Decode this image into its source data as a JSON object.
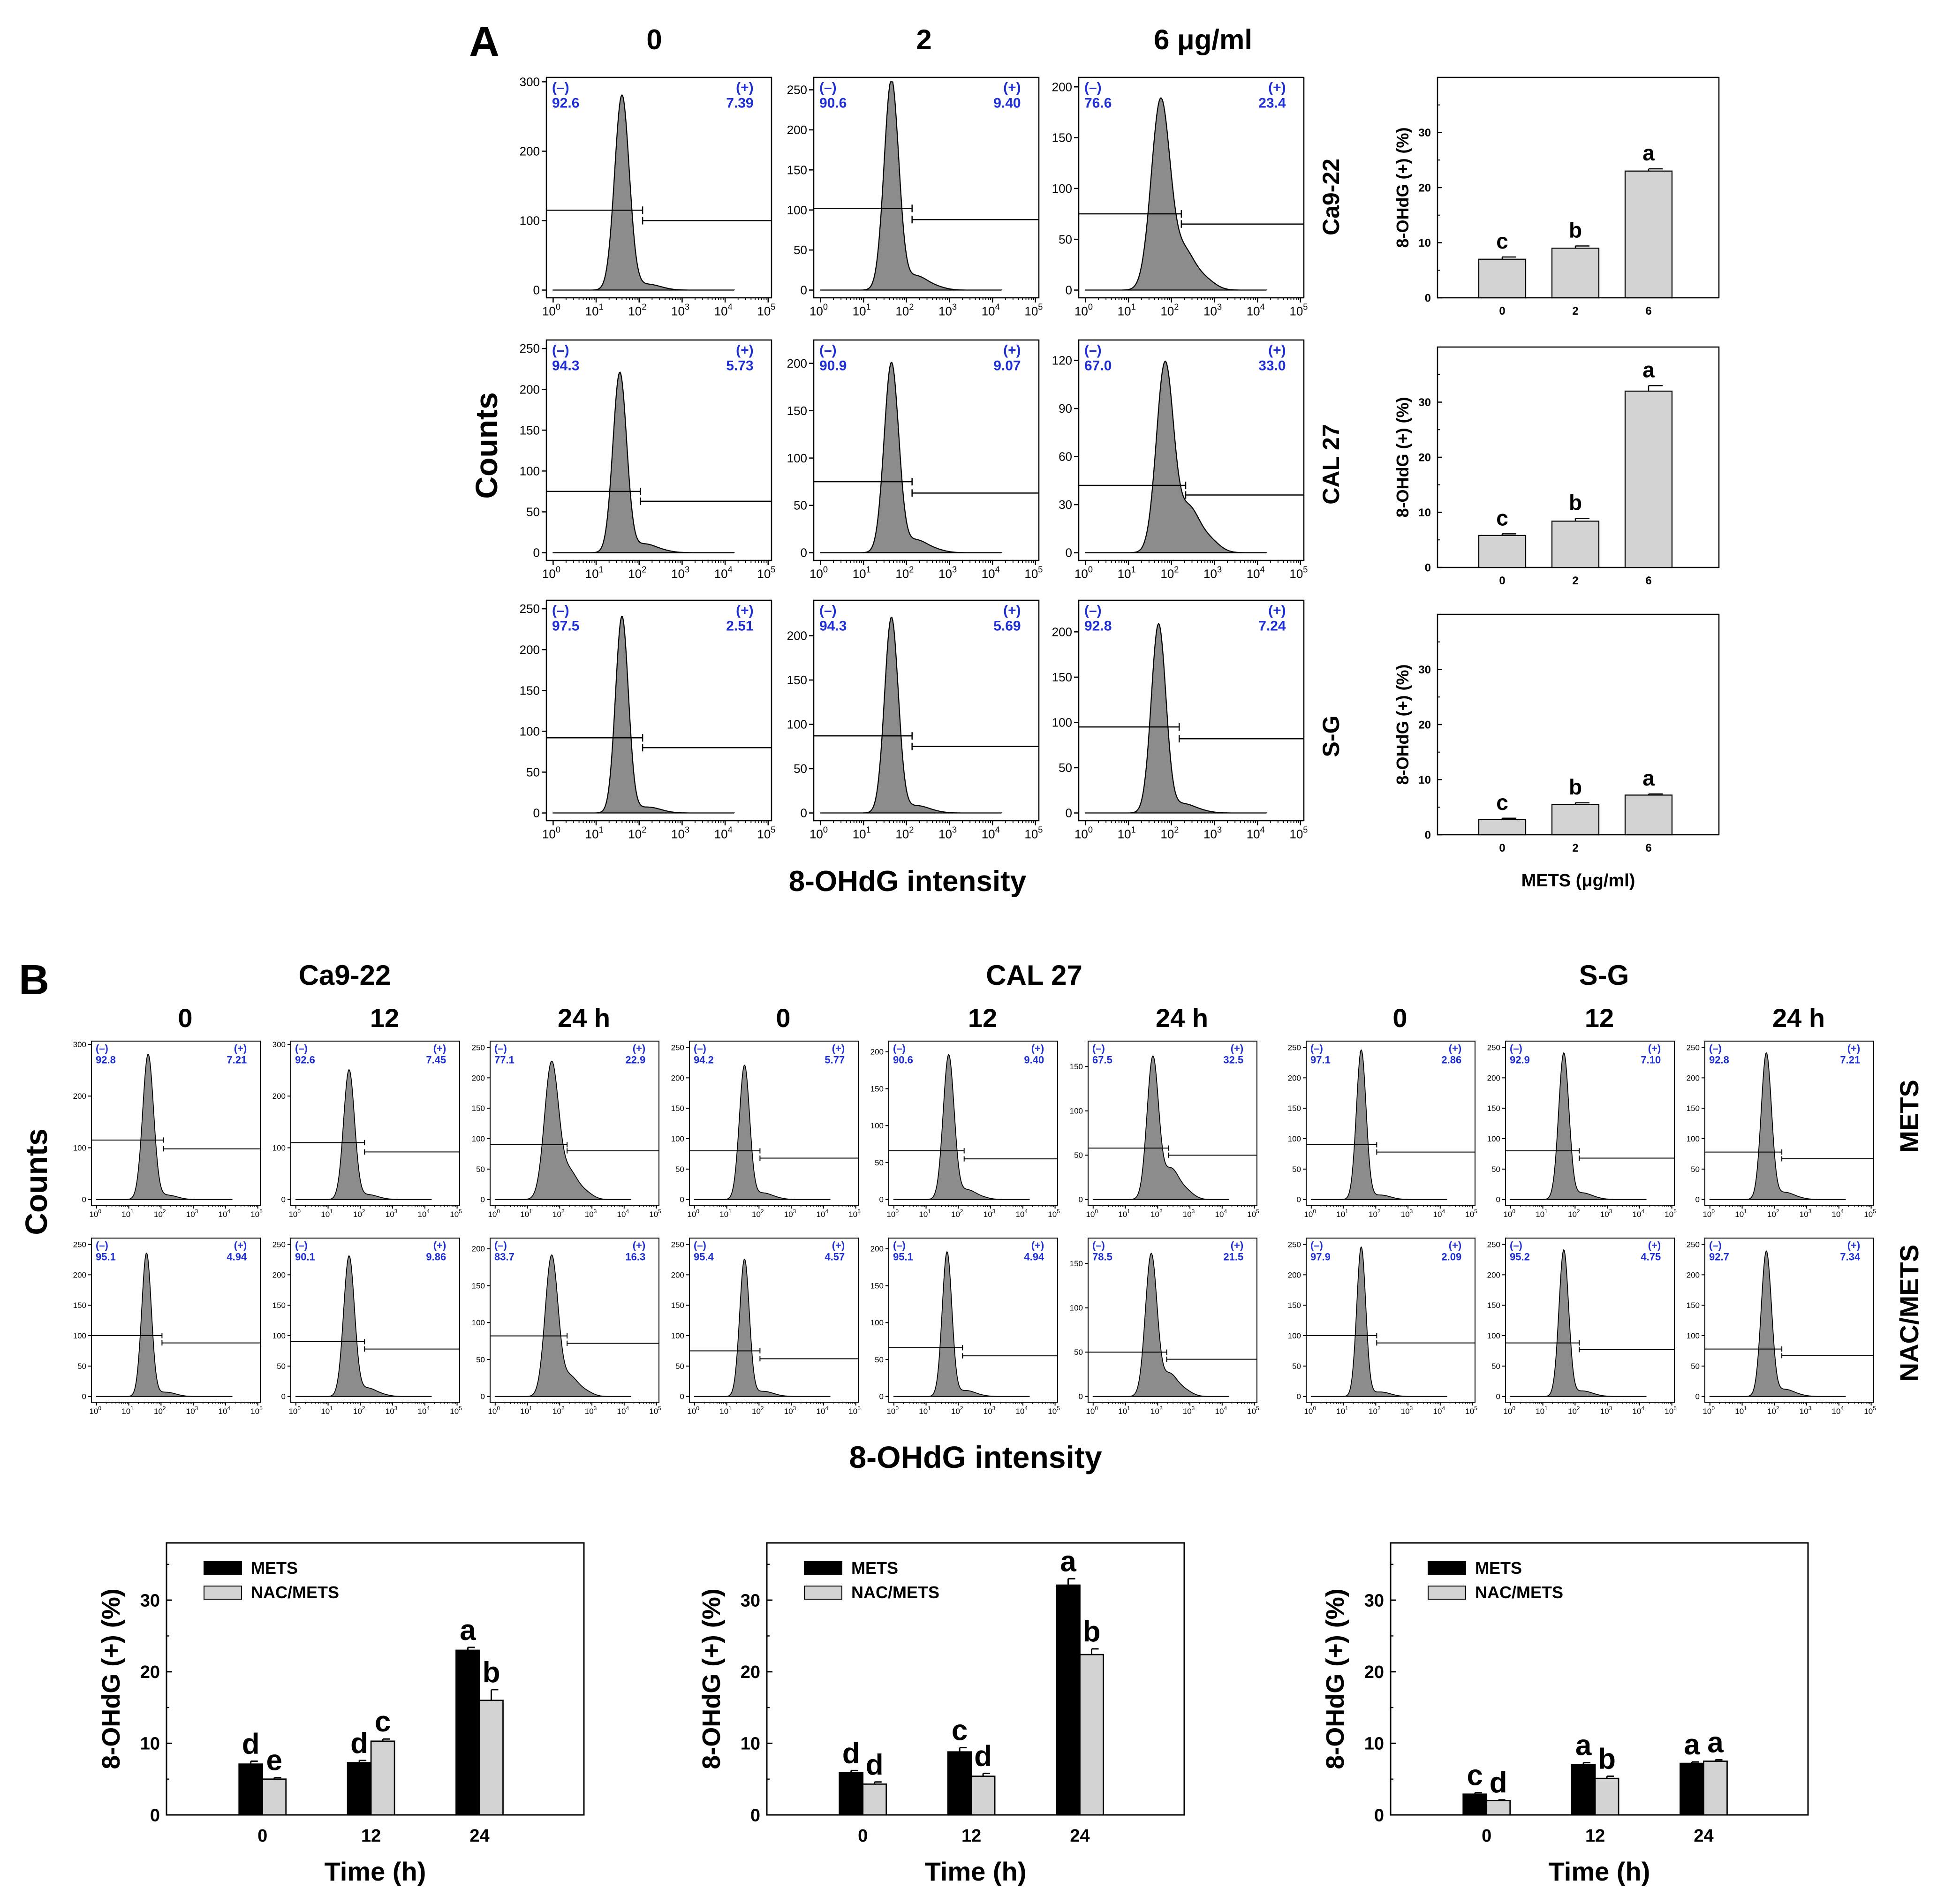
{
  "figure": {
    "panel_a_label": "A",
    "panel_b_label": "B",
    "colors": {
      "histogram_fill": "#8c8c8c",
      "stat_text": "#1f2fd6",
      "bar_light": "#d3d3d3",
      "bar_dark": "#000000"
    }
  },
  "panel_a": {
    "column_headers": [
      "0",
      "2",
      "6 μg/ml"
    ],
    "row_labels": [
      "Ca9-22",
      "CAL 27",
      "S-G"
    ],
    "y_axis_label": "Counts",
    "x_axis_label": "8-OHdG intensity",
    "log_ticks": [
      "10",
      "10",
      "10",
      "10",
      "10",
      "10"
    ],
    "log_exponents": [
      "0",
      "1",
      "2",
      "3",
      "4",
      "5"
    ],
    "histograms": [
      {
        "row": 0,
        "col": 0,
        "neg_label": "(–)",
        "pos_label": "(+)",
        "neg": "92.6",
        "pos": "7.39",
        "yticks": [
          "0",
          "100",
          "200",
          "300"
        ],
        "ymax": 300,
        "peak_log": 1.6,
        "peak": 280,
        "width": 0.17,
        "tail": 0.0,
        "gate_y": 115,
        "gate_y2": 100
      },
      {
        "row": 0,
        "col": 1,
        "neg_label": "(–)",
        "pos_label": "(+)",
        "neg": "90.6",
        "pos": "9.40",
        "yticks": [
          "0",
          "50",
          "100",
          "150",
          "200",
          "250"
        ],
        "ymax": 260,
        "peak_log": 1.65,
        "peak": 262,
        "width": 0.17,
        "tail": 0.1,
        "gate_y": 102,
        "gate_y2": 88
      },
      {
        "row": 0,
        "col": 2,
        "neg_label": "(–)",
        "pos_label": "(+)",
        "neg": "76.6",
        "pos": "23.4",
        "yticks": [
          "0",
          "50",
          "100",
          "150",
          "200"
        ],
        "ymax": 205,
        "peak_log": 1.75,
        "peak": 187,
        "width": 0.22,
        "tail": 0.45,
        "gate_y": 75,
        "gate_y2": 65
      },
      {
        "row": 1,
        "col": 0,
        "neg_label": "(–)",
        "pos_label": "(+)",
        "neg": "94.3",
        "pos": "5.73",
        "yticks": [
          "0",
          "50",
          "100",
          "150",
          "200",
          "250"
        ],
        "ymax": 255,
        "peak_log": 1.55,
        "peak": 220,
        "width": 0.16,
        "tail": 0.05,
        "gate_y": 75,
        "gate_y2": 63
      },
      {
        "row": 1,
        "col": 1,
        "neg_label": "(–)",
        "pos_label": "(+)",
        "neg": "90.9",
        "pos": "9.07",
        "yticks": [
          "0",
          "50",
          "100",
          "150",
          "200"
        ],
        "ymax": 220,
        "peak_log": 1.65,
        "peak": 200,
        "width": 0.17,
        "tail": 0.1,
        "gate_y": 75,
        "gate_y2": 63
      },
      {
        "row": 1,
        "col": 2,
        "neg_label": "(–)",
        "pos_label": "(+)",
        "neg": "67.0",
        "pos": "33.0",
        "yticks": [
          "0",
          "30",
          "60",
          "90",
          "120"
        ],
        "ymax": 130,
        "peak_log": 1.85,
        "peak": 118,
        "width": 0.2,
        "tail": 0.55,
        "gate_y": 42,
        "gate_y2": 36
      },
      {
        "row": 2,
        "col": 0,
        "neg_label": "(–)",
        "pos_label": "(+)",
        "neg": "97.5",
        "pos": "2.51",
        "yticks": [
          "0",
          "50",
          "100",
          "150",
          "200",
          "250"
        ],
        "ymax": 255,
        "peak_log": 1.6,
        "peak": 240,
        "width": 0.15,
        "tail": 0.0,
        "gate_y": 92,
        "gate_y2": 80
      },
      {
        "row": 2,
        "col": 1,
        "neg_label": "(–)",
        "pos_label": "(+)",
        "neg": "94.3",
        "pos": "5.69",
        "yticks": [
          "0",
          "50",
          "100",
          "150",
          "200"
        ],
        "ymax": 235,
        "peak_log": 1.65,
        "peak": 220,
        "width": 0.16,
        "tail": 0.02,
        "gate_y": 87,
        "gate_y2": 75
      },
      {
        "row": 2,
        "col": 2,
        "neg_label": "(–)",
        "pos_label": "(+)",
        "neg": "92.8",
        "pos": "7.24",
        "yticks": [
          "0",
          "50",
          "100",
          "150",
          "200"
        ],
        "ymax": 230,
        "peak_log": 1.7,
        "peak": 208,
        "width": 0.17,
        "tail": 0.05,
        "gate_y": 95,
        "gate_y2": 82
      }
    ]
  },
  "panel_b": {
    "group_titles": [
      "Ca9-22",
      "CAL 27",
      "S-G"
    ],
    "time_labels": [
      "0",
      "12",
      "24 h"
    ],
    "row_labels": [
      "METS",
      "NAC/METS"
    ],
    "y_axis_label": "Counts",
    "x_axis_label": "8-OHdG intensity",
    "histograms": [
      {
        "row": 0,
        "group": 0,
        "time": 0,
        "neg_label": "(–)",
        "pos_label": "(+)",
        "neg": "92.8",
        "pos": "7.21",
        "yticks": [
          "0",
          "100",
          "200",
          "300"
        ],
        "ymax": 300,
        "peak_log": 1.6,
        "peak": 280,
        "width": 0.17,
        "tail": 0.0,
        "gate_y": 115,
        "gate_y2": 98
      },
      {
        "row": 0,
        "group": 0,
        "time": 1,
        "neg_label": "(–)",
        "pos_label": "(+)",
        "neg": "92.6",
        "pos": "7.45",
        "yticks": [
          "0",
          "100",
          "200",
          "300"
        ],
        "ymax": 300,
        "peak_log": 1.65,
        "peak": 250,
        "width": 0.17,
        "tail": 0.02,
        "gate_y": 110,
        "gate_y2": 92
      },
      {
        "row": 0,
        "group": 0,
        "time": 2,
        "neg_label": "(–)",
        "pos_label": "(+)",
        "neg": "77.1",
        "pos": "22.9",
        "yticks": [
          "0",
          "50",
          "100",
          "150",
          "200",
          "250"
        ],
        "ymax": 255,
        "peak_log": 1.75,
        "peak": 225,
        "width": 0.22,
        "tail": 0.45,
        "gate_y": 90,
        "gate_y2": 80
      },
      {
        "row": 0,
        "group": 1,
        "time": 0,
        "neg_label": "(–)",
        "pos_label": "(+)",
        "neg": "94.2",
        "pos": "5.77",
        "yticks": [
          "0",
          "50",
          "100",
          "150",
          "200",
          "250"
        ],
        "ymax": 255,
        "peak_log": 1.55,
        "peak": 220,
        "width": 0.16,
        "tail": 0.05,
        "gate_y": 80,
        "gate_y2": 68
      },
      {
        "row": 0,
        "group": 1,
        "time": 1,
        "neg_label": "(–)",
        "pos_label": "(+)",
        "neg": "90.6",
        "pos": "9.40",
        "yticks": [
          "0",
          "50",
          "100",
          "150",
          "200"
        ],
        "ymax": 210,
        "peak_log": 1.7,
        "peak": 195,
        "width": 0.17,
        "tail": 0.1,
        "gate_y": 66,
        "gate_y2": 55
      },
      {
        "row": 0,
        "group": 1,
        "time": 2,
        "neg_label": "(–)",
        "pos_label": "(+)",
        "neg": "67.5",
        "pos": "32.5",
        "yticks": [
          "0",
          "50",
          "100",
          "150"
        ],
        "ymax": 175,
        "peak_log": 1.85,
        "peak": 160,
        "width": 0.18,
        "tail": 0.5,
        "gate_y": 58,
        "gate_y2": 50
      },
      {
        "row": 0,
        "group": 2,
        "time": 0,
        "neg_label": "(–)",
        "pos_label": "(+)",
        "neg": "97.1",
        "pos": "2.86",
        "yticks": [
          "0",
          "50",
          "100",
          "150",
          "200",
          "250"
        ],
        "ymax": 255,
        "peak_log": 1.55,
        "peak": 245,
        "width": 0.15,
        "tail": 0.0,
        "gate_y": 90,
        "gate_y2": 78
      },
      {
        "row": 0,
        "group": 2,
        "time": 1,
        "neg_label": "(–)",
        "pos_label": "(+)",
        "neg": "92.9",
        "pos": "7.10",
        "yticks": [
          "0",
          "50",
          "100",
          "150",
          "200",
          "250"
        ],
        "ymax": 255,
        "peak_log": 1.65,
        "peak": 240,
        "width": 0.16,
        "tail": 0.04,
        "gate_y": 80,
        "gate_y2": 68
      },
      {
        "row": 0,
        "group": 2,
        "time": 2,
        "neg_label": "(–)",
        "pos_label": "(+)",
        "neg": "92.8",
        "pos": "7.21",
        "yticks": [
          "0",
          "50",
          "100",
          "150",
          "200",
          "250"
        ],
        "ymax": 255,
        "peak_log": 1.75,
        "peak": 240,
        "width": 0.16,
        "tail": 0.05,
        "gate_y": 78,
        "gate_y2": 67
      },
      {
        "row": 1,
        "group": 0,
        "time": 0,
        "neg_label": "(–)",
        "pos_label": "(+)",
        "neg": "95.1",
        "pos": "4.94",
        "yticks": [
          "0",
          "50",
          "100",
          "150",
          "200",
          "250"
        ],
        "ymax": 255,
        "peak_log": 1.55,
        "peak": 235,
        "width": 0.15,
        "tail": 0.0,
        "gate_y": 100,
        "gate_y2": 88
      },
      {
        "row": 1,
        "group": 0,
        "time": 1,
        "neg_label": "(–)",
        "pos_label": "(+)",
        "neg": "90.1",
        "pos": "9.86",
        "yticks": [
          "0",
          "50",
          "100",
          "150",
          "200",
          "250"
        ],
        "ymax": 255,
        "peak_log": 1.65,
        "peak": 230,
        "width": 0.17,
        "tail": 0.08,
        "gate_y": 90,
        "gate_y2": 78
      },
      {
        "row": 1,
        "group": 0,
        "time": 2,
        "neg_label": "(–)",
        "pos_label": "(+)",
        "neg": "83.7",
        "pos": "16.3",
        "yticks": [
          "0",
          "50",
          "100",
          "150",
          "200"
        ],
        "ymax": 210,
        "peak_log": 1.75,
        "peak": 190,
        "width": 0.2,
        "tail": 0.3,
        "gate_y": 82,
        "gate_y2": 72
      },
      {
        "row": 1,
        "group": 1,
        "time": 0,
        "neg_label": "(–)",
        "pos_label": "(+)",
        "neg": "95.4",
        "pos": "4.57",
        "yticks": [
          "0",
          "50",
          "100",
          "150",
          "200",
          "250"
        ],
        "ymax": 255,
        "peak_log": 1.55,
        "peak": 225,
        "width": 0.15,
        "tail": 0.02,
        "gate_y": 75,
        "gate_y2": 62
      },
      {
        "row": 1,
        "group": 1,
        "time": 1,
        "neg_label": "(–)",
        "pos_label": "(+)",
        "neg": "95.1",
        "pos": "4.94",
        "yticks": [
          "0",
          "50",
          "100",
          "150",
          "200"
        ],
        "ymax": 210,
        "peak_log": 1.65,
        "peak": 195,
        "width": 0.15,
        "tail": 0.03,
        "gate_y": 66,
        "gate_y2": 55
      },
      {
        "row": 1,
        "group": 1,
        "time": 2,
        "neg_label": "(–)",
        "pos_label": "(+)",
        "neg": "78.5",
        "pos": "21.5",
        "yticks": [
          "0",
          "50",
          "100",
          "150"
        ],
        "ymax": 175,
        "peak_log": 1.8,
        "peak": 160,
        "width": 0.18,
        "tail": 0.35,
        "gate_y": 50,
        "gate_y2": 42
      },
      {
        "row": 1,
        "group": 2,
        "time": 0,
        "neg_label": "(–)",
        "pos_label": "(+)",
        "neg": "97.9",
        "pos": "2.09",
        "yticks": [
          "0",
          "50",
          "100",
          "150",
          "200",
          "250"
        ],
        "ymax": 255,
        "peak_log": 1.55,
        "peak": 245,
        "width": 0.14,
        "tail": 0.0,
        "gate_y": 100,
        "gate_y2": 88
      },
      {
        "row": 1,
        "group": 2,
        "time": 1,
        "neg_label": "(–)",
        "pos_label": "(+)",
        "neg": "95.2",
        "pos": "4.75",
        "yticks": [
          "0",
          "50",
          "100",
          "150",
          "200",
          "250"
        ],
        "ymax": 255,
        "peak_log": 1.65,
        "peak": 240,
        "width": 0.15,
        "tail": 0.02,
        "gate_y": 88,
        "gate_y2": 77
      },
      {
        "row": 1,
        "group": 2,
        "time": 2,
        "neg_label": "(–)",
        "pos_label": "(+)",
        "neg": "92.7",
        "pos": "7.34",
        "yticks": [
          "0",
          "50",
          "100",
          "150",
          "200",
          "250"
        ],
        "ymax": 255,
        "peak_log": 1.75,
        "peak": 238,
        "width": 0.16,
        "tail": 0.05,
        "gate_y": 78,
        "gate_y2": 67
      }
    ]
  },
  "chart_data": [
    {
      "type": "bar",
      "id": "A-Ca9-22",
      "title": "",
      "row_label": "Ca9-22",
      "categories": [
        "0",
        "2",
        "6"
      ],
      "values": [
        7.0,
        9.0,
        23.0
      ],
      "errors": [
        0.4,
        0.4,
        0.4
      ],
      "letters": [
        "c",
        "b",
        "a"
      ],
      "ylabel": "8-OHdG (+) (%)",
      "xlabel": "",
      "ylim": [
        0,
        40
      ],
      "yticks": [
        "0",
        "10",
        "20",
        "30"
      ]
    },
    {
      "type": "bar",
      "id": "A-CAL 27",
      "title": "",
      "row_label": "CAL 27",
      "categories": [
        "0",
        "2",
        "6"
      ],
      "values": [
        5.8,
        8.4,
        32.0
      ],
      "errors": [
        0.3,
        0.5,
        1.0
      ],
      "letters": [
        "c",
        "b",
        "a"
      ],
      "ylabel": "8-OHdG (+) (%)",
      "xlabel": "",
      "ylim": [
        0,
        40
      ],
      "yticks": [
        "0",
        "10",
        "20",
        "30"
      ]
    },
    {
      "type": "bar",
      "id": "A-S-G",
      "title": "",
      "row_label": "S-G",
      "categories": [
        "0",
        "2",
        "6"
      ],
      "values": [
        2.8,
        5.5,
        7.2
      ],
      "errors": [
        0.2,
        0.3,
        0.2
      ],
      "letters": [
        "c",
        "b",
        "a"
      ],
      "ylabel": "8-OHdG (+) (%)",
      "xlabel": "METS (μg/ml)",
      "ylim": [
        0,
        40
      ],
      "yticks": [
        "0",
        "10",
        "20",
        "30"
      ]
    },
    {
      "type": "bar",
      "id": "B-Ca9-22",
      "title": "",
      "categories": [
        "0",
        "12",
        "24"
      ],
      "series": [
        {
          "name": "METS",
          "values": [
            7.1,
            7.3,
            23.0
          ],
          "errors": [
            0.4,
            0.3,
            0.4
          ],
          "letters": [
            "d",
            "d",
            "a"
          ]
        },
        {
          "name": "NAC/METS",
          "values": [
            5.0,
            10.3,
            16.0
          ],
          "errors": [
            0.2,
            0.3,
            1.5
          ],
          "letters": [
            "e",
            "c",
            "b"
          ]
        }
      ],
      "ylabel": "8-OHdG (+) (%)",
      "xlabel": "Time (h)",
      "ylim": [
        0,
        38
      ],
      "yticks": [
        "0",
        "10",
        "20",
        "30"
      ],
      "legend_position": "top-left"
    },
    {
      "type": "bar",
      "id": "B-CAL 27",
      "title": "",
      "categories": [
        "0",
        "12",
        "24"
      ],
      "series": [
        {
          "name": "METS",
          "values": [
            5.9,
            8.8,
            32.1
          ],
          "errors": [
            0.3,
            0.6,
            0.9
          ],
          "letters": [
            "d",
            "c",
            "a"
          ]
        },
        {
          "name": "NAC/METS",
          "values": [
            4.3,
            5.4,
            22.4
          ],
          "errors": [
            0.3,
            0.4,
            0.8
          ],
          "letters": [
            "d",
            "d",
            "b"
          ]
        }
      ],
      "ylabel": "8-OHdG (+) (%)",
      "xlabel": "Time (h)",
      "ylim": [
        0,
        38
      ],
      "yticks": [
        "0",
        "10",
        "20",
        "30"
      ],
      "legend_position": "top-left"
    },
    {
      "type": "bar",
      "id": "B-S-G",
      "title": "",
      "categories": [
        "0",
        "12",
        "24"
      ],
      "series": [
        {
          "name": "METS",
          "values": [
            2.9,
            7.0,
            7.2
          ],
          "errors": [
            0.2,
            0.3,
            0.2
          ],
          "letters": [
            "c",
            "a",
            "a"
          ]
        },
        {
          "name": "NAC/METS",
          "values": [
            2.0,
            5.1,
            7.5
          ],
          "errors": [
            0.1,
            0.3,
            0.2
          ],
          "letters": [
            "d",
            "b",
            "a"
          ]
        }
      ],
      "ylabel": "8-OHdG (+) (%)",
      "xlabel": "Time (h)",
      "ylim": [
        0,
        38
      ],
      "yticks": [
        "0",
        "10",
        "20",
        "30"
      ],
      "legend_position": "top-left"
    }
  ]
}
